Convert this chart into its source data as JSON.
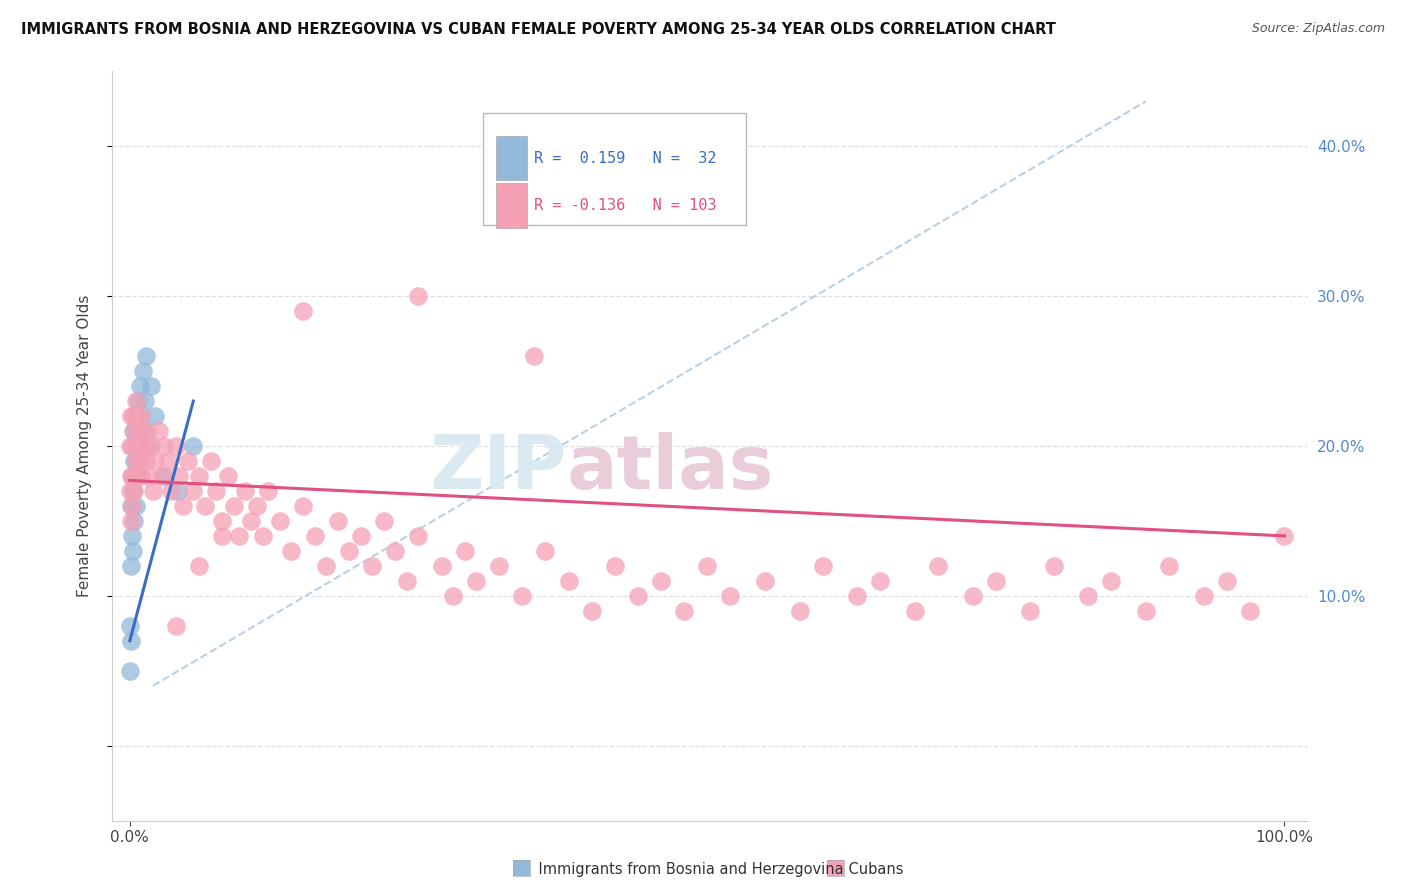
{
  "title": "IMMIGRANTS FROM BOSNIA AND HERZEGOVINA VS CUBAN FEMALE POVERTY AMONG 25-34 YEAR OLDS CORRELATION CHART",
  "source": "Source: ZipAtlas.com",
  "ylabel": "Female Poverty Among 25-34 Year Olds",
  "r_bosnia": 0.159,
  "n_bosnia": 32,
  "r_cuban": -0.136,
  "n_cuban": 103,
  "color_bosnia": "#92b9d9",
  "color_cuban": "#f5a0b5",
  "line_color_bosnia": "#3a6ec4",
  "line_color_cuban": "#e05080",
  "dash_line_color": "#b0c8e0",
  "grid_color": "#d8d8d8",
  "watermark_color": "#d8e8f0",
  "watermark_color2": "#e8c8d8",
  "bosnia_x": [
    0.0,
    0.0,
    0.001,
    0.001,
    0.001,
    0.002,
    0.002,
    0.003,
    0.003,
    0.003,
    0.004,
    0.004,
    0.005,
    0.005,
    0.006,
    0.006,
    0.007,
    0.007,
    0.008,
    0.009,
    0.009,
    0.01,
    0.011,
    0.012,
    0.013,
    0.014,
    0.016,
    0.018,
    0.022,
    0.03,
    0.042,
    0.055
  ],
  "bosnia_y": [
    0.05,
    0.08,
    0.07,
    0.12,
    0.16,
    0.14,
    0.18,
    0.13,
    0.17,
    0.21,
    0.15,
    0.19,
    0.16,
    0.2,
    0.18,
    0.22,
    0.2,
    0.23,
    0.21,
    0.19,
    0.24,
    0.22,
    0.25,
    0.21,
    0.23,
    0.26,
    0.2,
    0.24,
    0.22,
    0.18,
    0.17,
    0.2
  ],
  "cuban_x": [
    0.0,
    0.0,
    0.001,
    0.001,
    0.001,
    0.002,
    0.002,
    0.003,
    0.003,
    0.004,
    0.004,
    0.005,
    0.005,
    0.006,
    0.006,
    0.007,
    0.008,
    0.009,
    0.01,
    0.01,
    0.012,
    0.014,
    0.015,
    0.016,
    0.018,
    0.02,
    0.022,
    0.025,
    0.028,
    0.03,
    0.033,
    0.036,
    0.04,
    0.043,
    0.046,
    0.05,
    0.055,
    0.06,
    0.065,
    0.07,
    0.075,
    0.08,
    0.085,
    0.09,
    0.095,
    0.1,
    0.105,
    0.11,
    0.115,
    0.12,
    0.13,
    0.14,
    0.15,
    0.16,
    0.17,
    0.18,
    0.19,
    0.2,
    0.21,
    0.22,
    0.23,
    0.24,
    0.25,
    0.27,
    0.28,
    0.29,
    0.3,
    0.32,
    0.34,
    0.36,
    0.38,
    0.4,
    0.42,
    0.44,
    0.46,
    0.48,
    0.5,
    0.52,
    0.55,
    0.58,
    0.6,
    0.63,
    0.65,
    0.68,
    0.7,
    0.73,
    0.75,
    0.78,
    0.8,
    0.83,
    0.85,
    0.88,
    0.9,
    0.93,
    0.95,
    0.97,
    1.0,
    0.35,
    0.25,
    0.15,
    0.06,
    0.08,
    0.04
  ],
  "cuban_y": [
    0.17,
    0.2,
    0.15,
    0.18,
    0.22,
    0.16,
    0.2,
    0.18,
    0.22,
    0.17,
    0.21,
    0.19,
    0.23,
    0.18,
    0.22,
    0.2,
    0.19,
    0.21,
    0.18,
    0.22,
    0.2,
    0.19,
    0.21,
    0.18,
    0.2,
    0.17,
    0.19,
    0.21,
    0.18,
    0.2,
    0.19,
    0.17,
    0.2,
    0.18,
    0.16,
    0.19,
    0.17,
    0.18,
    0.16,
    0.19,
    0.17,
    0.15,
    0.18,
    0.16,
    0.14,
    0.17,
    0.15,
    0.16,
    0.14,
    0.17,
    0.15,
    0.13,
    0.16,
    0.14,
    0.12,
    0.15,
    0.13,
    0.14,
    0.12,
    0.15,
    0.13,
    0.11,
    0.14,
    0.12,
    0.1,
    0.13,
    0.11,
    0.12,
    0.1,
    0.13,
    0.11,
    0.09,
    0.12,
    0.1,
    0.11,
    0.09,
    0.12,
    0.1,
    0.11,
    0.09,
    0.12,
    0.1,
    0.11,
    0.09,
    0.12,
    0.1,
    0.11,
    0.09,
    0.12,
    0.1,
    0.11,
    0.09,
    0.12,
    0.1,
    0.11,
    0.09,
    0.14,
    0.26,
    0.3,
    0.29,
    0.12,
    0.14,
    0.08
  ],
  "xlim": [
    -0.015,
    1.02
  ],
  "ylim": [
    -0.05,
    0.45
  ],
  "yticks": [
    0.0,
    0.1,
    0.2,
    0.3,
    0.4
  ],
  "xticks_major": [
    0.0,
    1.0
  ]
}
